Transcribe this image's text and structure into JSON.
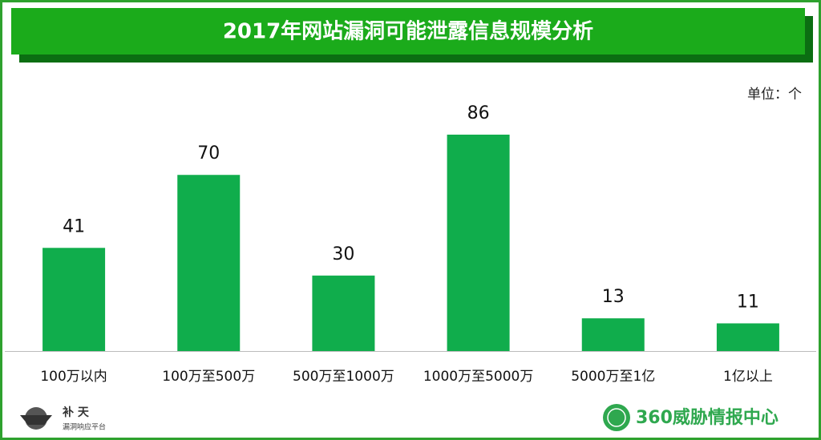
{
  "chart_data": {
    "type": "bar",
    "title": "2017年网站漏洞可能泄露信息规模分析",
    "unit_label": "单位：个",
    "categories": [
      "100万以内",
      "100万至500万",
      "500万至1000万",
      "1000万至5000万",
      "5000万至1亿",
      "1亿以上"
    ],
    "values": [
      41,
      70,
      30,
      86,
      13,
      11
    ],
    "color": "#10ad4c"
  },
  "logos": {
    "left_title": "补 天",
    "left_subtitle": "漏洞响应平台",
    "right": "360威胁情报中心"
  }
}
